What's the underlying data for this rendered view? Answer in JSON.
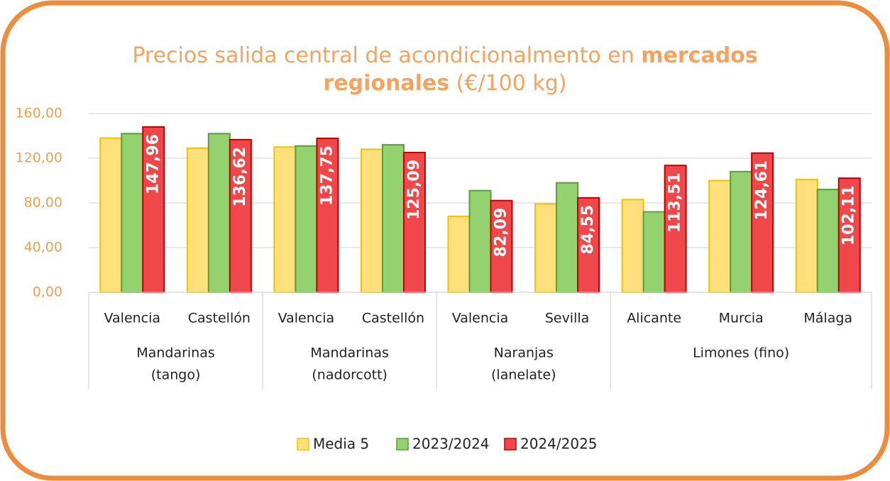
{
  "chart_data": {
    "type": "bar",
    "title": {
      "line1": "Precios salida central de acondicionalmento en ",
      "line1_bold": "mercados",
      "line2_bold": "regionales",
      "line2": " (€/100 kg)"
    },
    "groups": [
      {
        "label": [
          "Mandarinas",
          "(tango)"
        ],
        "categories": [
          "Valencia",
          "Castellón"
        ]
      },
      {
        "label": [
          "Mandarinas",
          "(nadorcott)"
        ],
        "categories": [
          "Valencia",
          "Castellón"
        ]
      },
      {
        "label": [
          "Naranjas",
          "(lanelate)"
        ],
        "categories": [
          "Valencia",
          "Sevilla"
        ]
      },
      {
        "label": [
          "Limones (fino)"
        ],
        "categories": [
          "Alicante",
          "Murcia",
          "Málaga"
        ]
      }
    ],
    "series": [
      {
        "name": "Media 5",
        "color": "#ffe07a",
        "stroke": "#f2c200",
        "values": [
          138,
          129,
          130,
          128,
          68,
          79,
          83,
          100,
          101
        ]
      },
      {
        "name": "2023/2024",
        "color": "#93d26e",
        "stroke": "#5b9e3a",
        "values": [
          142,
          142,
          131,
          132,
          91,
          98,
          72,
          108,
          92
        ]
      },
      {
        "name": "2024/2025",
        "color": "#f0474a",
        "stroke": "#c00000",
        "values": [
          147.96,
          136.62,
          137.75,
          125.09,
          82.09,
          84.55,
          113.51,
          124.61,
          102.11
        ],
        "value_labels": [
          "147,96",
          "136,62",
          "137,75",
          "125,09",
          "82,09",
          "84,55",
          "113,51",
          "124,61",
          "102,11"
        ]
      }
    ],
    "ylim": [
      0,
      160
    ],
    "yticks": [
      {
        "value": 0,
        "label": "0,00"
      },
      {
        "value": 40,
        "label": "40,00"
      },
      {
        "value": 80,
        "label": "80,00"
      },
      {
        "value": 120,
        "label": "120,00"
      },
      {
        "value": 160,
        "label": "160,00"
      }
    ],
    "grid": true,
    "legend": "bottom"
  }
}
